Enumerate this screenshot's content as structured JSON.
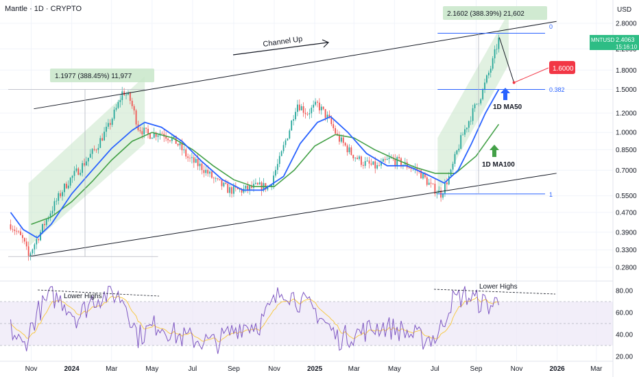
{
  "header": {
    "title": "Mantle · 1D · CRYPTO",
    "currency": "USD"
  },
  "price_badge": {
    "symbol": "MNTUSD",
    "price": "2.4063",
    "countdown": "15:16:10",
    "color": "#2ebd85"
  },
  "target_badge": {
    "value": "1.6000",
    "color": "#f23645"
  },
  "annotations": {
    "channel": "Channel Up",
    "ma50": "1D MA50",
    "ma100": "1D MA100",
    "lower_highs_left": "Lower Highs",
    "lower_highs_right": "Lower Highs",
    "measure_left": "1.1977 (388.45%) 11,977",
    "measure_right": "2.1602 (388.39%) 21,602",
    "fib_0": "0",
    "fib_382": "0.382",
    "fib_1": "1"
  },
  "colors": {
    "ma50": "#2962ff",
    "ma100": "#43a047",
    "candle_up": "#26a69a",
    "candle_down": "#ef5350",
    "rsi": "#7e57c2",
    "rsi_ma": "#f7c948",
    "fib": "#2962ff",
    "channel_fill": "#c8e6c9"
  },
  "chart_data": {
    "type": "candlestick",
    "symbol": "MNTUSD",
    "timeframe": "1D",
    "y_scale": "log",
    "y_ticks": [
      "2.8000",
      "2.2000",
      "1.8000",
      "1.5000",
      "1.2000",
      "1.0000",
      "0.8500",
      "0.7000",
      "0.5500",
      "0.4700",
      "0.3900",
      "0.3300",
      "0.2800"
    ],
    "x_ticks": [
      "Nov",
      "2024",
      "Mar",
      "May",
      "Jul",
      "Sep",
      "Nov",
      "2025",
      "Mar",
      "May",
      "Jul",
      "Sep",
      "Nov",
      "2026",
      "Mar"
    ],
    "x_ticks_bold": [
      "2024",
      "2025",
      "2026"
    ],
    "price_path": [
      [
        "2023-10-01",
        0.42
      ],
      [
        "2023-10-20",
        0.36
      ],
      [
        "2023-10-28",
        0.31
      ],
      [
        "2023-11-15",
        0.39
      ],
      [
        "2023-12-05",
        0.5
      ],
      [
        "2023-12-25",
        0.62
      ],
      [
        "2024-01-15",
        0.72
      ],
      [
        "2024-02-05",
        0.85
      ],
      [
        "2024-02-25",
        1.05
      ],
      [
        "2024-03-10",
        1.28
      ],
      [
        "2024-03-18",
        1.48
      ],
      [
        "2024-03-28",
        1.38
      ],
      [
        "2024-04-10",
        1.05
      ],
      [
        "2024-04-25",
        0.98
      ],
      [
        "2024-05-15",
        1.0
      ],
      [
        "2024-06-05",
        0.92
      ],
      [
        "2024-06-25",
        0.78
      ],
      [
        "2024-07-15",
        0.72
      ],
      [
        "2024-08-05",
        0.63
      ],
      [
        "2024-08-25",
        0.58
      ],
      [
        "2024-09-15",
        0.58
      ],
      [
        "2024-10-05",
        0.6
      ],
      [
        "2024-10-25",
        0.6
      ],
      [
        "2024-11-10",
        0.78
      ],
      [
        "2024-11-25",
        1.05
      ],
      [
        "2024-12-05",
        1.32
      ],
      [
        "2024-12-20",
        1.2
      ],
      [
        "2025-01-05",
        1.3
      ],
      [
        "2025-01-20",
        1.15
      ],
      [
        "2025-02-05",
        0.95
      ],
      [
        "2025-02-25",
        0.82
      ],
      [
        "2025-03-15",
        0.75
      ],
      [
        "2025-04-05",
        0.72
      ],
      [
        "2025-04-25",
        0.78
      ],
      [
        "2025-05-15",
        0.74
      ],
      [
        "2025-06-05",
        0.7
      ],
      [
        "2025-06-25",
        0.6
      ],
      [
        "2025-07-10",
        0.56
      ],
      [
        "2025-07-25",
        0.68
      ],
      [
        "2025-08-10",
        0.95
      ],
      [
        "2025-08-25",
        1.18
      ],
      [
        "2025-09-10",
        1.45
      ],
      [
        "2025-09-25",
        1.9
      ],
      [
        "2025-10-05",
        2.4
      ]
    ],
    "ma50": [
      [
        "2023-10-01",
        0.47
      ],
      [
        "2023-10-20",
        0.4
      ],
      [
        "2023-11-10",
        0.37
      ],
      [
        "2023-12-01",
        0.42
      ],
      [
        "2024-01-01",
        0.56
      ],
      [
        "2024-02-01",
        0.7
      ],
      [
        "2024-03-01",
        0.86
      ],
      [
        "2024-04-01",
        1.02
      ],
      [
        "2024-04-20",
        1.1
      ],
      [
        "2024-05-15",
        1.05
      ],
      [
        "2024-06-15",
        0.92
      ],
      [
        "2024-07-15",
        0.76
      ],
      [
        "2024-08-15",
        0.64
      ],
      [
        "2024-09-15",
        0.58
      ],
      [
        "2024-10-15",
        0.58
      ],
      [
        "2024-11-15",
        0.66
      ],
      [
        "2024-12-10",
        0.9
      ],
      [
        "2025-01-05",
        1.1
      ],
      [
        "2025-01-25",
        1.16
      ],
      [
        "2025-02-20",
        1.0
      ],
      [
        "2025-03-20",
        0.82
      ],
      [
        "2025-04-20",
        0.73
      ],
      [
        "2025-05-20",
        0.73
      ],
      [
        "2025-06-20",
        0.67
      ],
      [
        "2025-07-15",
        0.62
      ],
      [
        "2025-08-05",
        0.7
      ],
      [
        "2025-08-25",
        0.9
      ],
      [
        "2025-09-15",
        1.2
      ],
      [
        "2025-10-05",
        1.5
      ]
    ],
    "ma100": [
      [
        "2023-11-01",
        0.42
      ],
      [
        "2023-12-01",
        0.45
      ],
      [
        "2024-01-01",
        0.52
      ],
      [
        "2024-02-01",
        0.63
      ],
      [
        "2024-03-01",
        0.77
      ],
      [
        "2024-04-01",
        0.92
      ],
      [
        "2024-05-01",
        1.0
      ],
      [
        "2024-06-01",
        0.95
      ],
      [
        "2024-07-01",
        0.85
      ],
      [
        "2024-08-01",
        0.73
      ],
      [
        "2024-09-01",
        0.64
      ],
      [
        "2024-10-01",
        0.6
      ],
      [
        "2024-11-01",
        0.6
      ],
      [
        "2024-12-01",
        0.7
      ],
      [
        "2025-01-01",
        0.88
      ],
      [
        "2025-02-01",
        0.98
      ],
      [
        "2025-03-01",
        0.95
      ],
      [
        "2025-04-01",
        0.85
      ],
      [
        "2025-05-01",
        0.78
      ],
      [
        "2025-06-01",
        0.72
      ],
      [
        "2025-07-01",
        0.68
      ],
      [
        "2025-08-01",
        0.68
      ],
      [
        "2025-09-01",
        0.8
      ],
      [
        "2025-10-05",
        1.08
      ]
    ],
    "channel_top": [
      [
        "2023-12-01",
        1.35
      ],
      [
        "2025-12-31",
        2.85
      ]
    ],
    "channel_bottom": [
      [
        "2023-10-28",
        0.31
      ],
      [
        "2025-12-31",
        0.68
      ]
    ],
    "fib_levels": [
      {
        "label": "0",
        "value": 2.55
      },
      {
        "label": "0.382",
        "value": 1.5
      },
      {
        "label": "1",
        "value": 0.56
      }
    ],
    "projection": [
      [
        "2025-10-06",
        2.45
      ],
      [
        "2025-10-28",
        1.6
      ]
    ],
    "target": 1.6,
    "rsi": {
      "y_ticks": [
        "80.00",
        "60.00",
        "40.00",
        "20.00"
      ],
      "band": [
        30,
        70
      ],
      "path": [
        [
          "2023-10-01",
          45
        ],
        [
          "2023-10-20",
          28
        ],
        [
          "2023-11-10",
          60
        ],
        [
          "2023-12-01",
          75
        ],
        [
          "2023-12-20",
          70
        ],
        [
          "2024-01-10",
          55
        ],
        [
          "2024-02-01",
          72
        ],
        [
          "2024-03-01",
          78
        ],
        [
          "2024-03-20",
          72
        ],
        [
          "2024-04-10",
          38
        ],
        [
          "2024-05-10",
          50
        ],
        [
          "2024-06-10",
          38
        ],
        [
          "2024-07-10",
          35
        ],
        [
          "2024-08-05",
          32
        ],
        [
          "2024-09-10",
          48
        ],
        [
          "2024-10-10",
          50
        ],
        [
          "2024-11-15",
          82
        ],
        [
          "2024-12-05",
          72
        ],
        [
          "2025-01-05",
          60
        ],
        [
          "2025-02-05",
          36
        ],
        [
          "2025-03-10",
          42
        ],
        [
          "2025-04-10",
          48
        ],
        [
          "2025-05-10",
          44
        ],
        [
          "2025-06-10",
          36
        ],
        [
          "2025-07-05",
          38
        ],
        [
          "2025-07-25",
          70
        ],
        [
          "2025-08-15",
          76
        ],
        [
          "2025-09-05",
          70
        ],
        [
          "2025-09-25",
          66
        ],
        [
          "2025-10-05",
          72
        ]
      ]
    }
  }
}
